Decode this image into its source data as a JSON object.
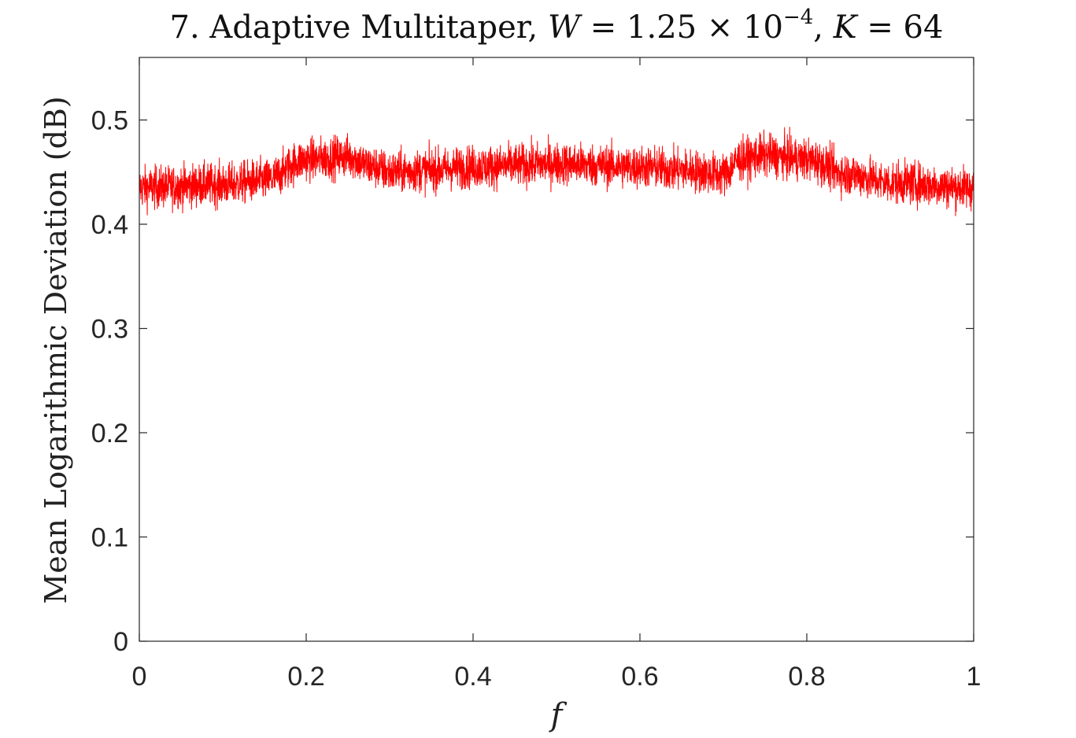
{
  "chart_data": {
    "type": "line",
    "title": {
      "prefix": "7. Adaptive Multitaper, ",
      "w_var": "W",
      "w_eq": " = 1.25 × 10",
      "w_exp": "−4",
      "sep": ", ",
      "k_var": "K",
      "k_eq": " = 64"
    },
    "xlabel": "f",
    "ylabel": "Mean Logarithmic Deviation (dB)",
    "xlim": [
      0,
      1
    ],
    "ylim": [
      0,
      0.56
    ],
    "xticks": [
      0,
      0.2,
      0.4,
      0.6,
      0.8,
      1
    ],
    "xtick_labels": [
      "0",
      "0.2",
      "0.4",
      "0.6",
      "0.8",
      "1"
    ],
    "yticks": [
      0,
      0.1,
      0.2,
      0.3,
      0.4,
      0.5
    ],
    "ytick_labels": [
      "0",
      "0.1",
      "0.2",
      "0.3",
      "0.4",
      "0.5"
    ],
    "grid": false,
    "series": [
      {
        "color": "#ff0000",
        "mean_profile": {
          "f": [
            0,
            0.1,
            0.15,
            0.2,
            0.25,
            0.28,
            0.3,
            0.35,
            0.4,
            0.5,
            0.6,
            0.65,
            0.7,
            0.72,
            0.75,
            0.8,
            0.85,
            0.9,
            1.0
          ],
          "y": [
            0.435,
            0.438,
            0.442,
            0.462,
            0.465,
            0.455,
            0.45,
            0.452,
            0.455,
            0.458,
            0.455,
            0.452,
            0.448,
            0.462,
            0.466,
            0.462,
            0.448,
            0.44,
            0.435
          ]
        },
        "noise_amplitude": 0.02,
        "spike_range": [
          0.4,
          0.51
        ]
      }
    ]
  }
}
